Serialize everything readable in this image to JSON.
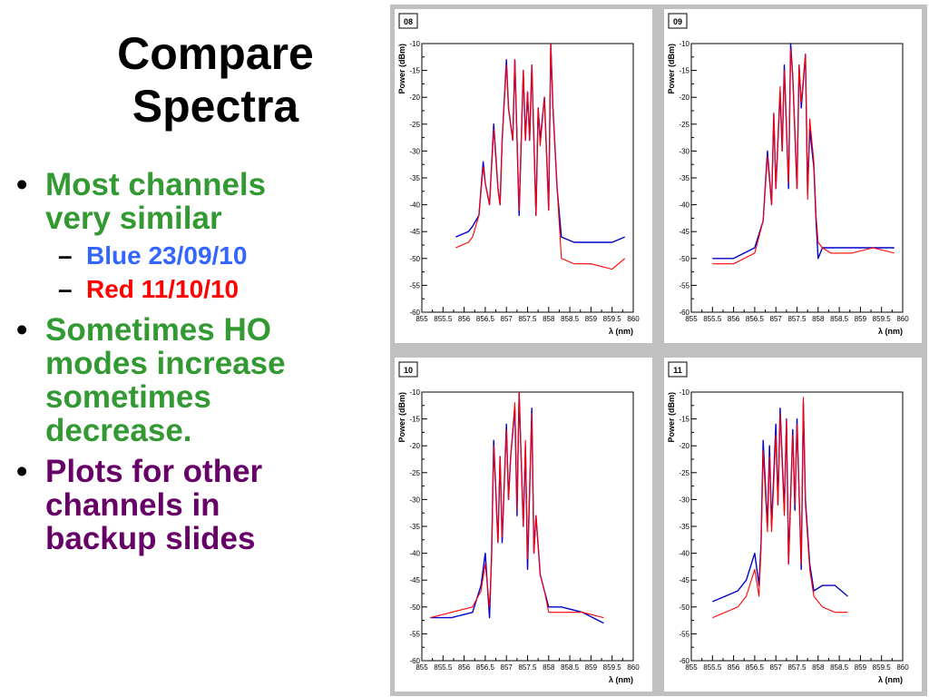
{
  "title": [
    "Compare",
    "Spectra"
  ],
  "bullets": [
    {
      "text": [
        "Most channels",
        "very similar"
      ],
      "color": "#339933",
      "sub": [
        {
          "text": "Blue 23/09/10",
          "color": "#3366FF"
        },
        {
          "text": "Red 11/10/10",
          "color": "#FF0000"
        }
      ]
    },
    {
      "text": [
        "Sometimes HO",
        "modes increase",
        "sometimes",
        "decrease."
      ],
      "color": "#339933"
    },
    {
      "text": [
        "Plots for other",
        "channels in",
        "backup slides"
      ],
      "color": "#660066"
    }
  ],
  "colors": {
    "series_blue": "#0000CC",
    "series_red": "#FF0000",
    "page_bg": "#C0C0C0",
    "plot_bg": "#FFFFFF"
  },
  "chart_data": [
    {
      "type": "line",
      "label": "08",
      "xlabel": "λ (nm)",
      "ylabel": "Power (dBm)",
      "xlim": [
        855,
        860
      ],
      "ylim": [
        -60,
        -10
      ],
      "xticks": [
        "855",
        "855.5",
        "856",
        "856.5",
        "857",
        "857.5",
        "858",
        "858.5",
        "859",
        "859.5",
        "860"
      ],
      "yticks": [
        "-10",
        "-15",
        "-20",
        "-25",
        "-30",
        "-35",
        "-40",
        "-45",
        "-50",
        "-55",
        "-60"
      ],
      "series": [
        {
          "color": "#0000CC",
          "x": [
            855.8,
            856.1,
            856.2,
            856.35,
            856.45,
            856.5,
            856.6,
            856.7,
            856.8,
            856.85,
            856.9,
            857.0,
            857.05,
            857.15,
            857.2,
            857.3,
            857.4,
            857.45,
            857.5,
            857.55,
            857.6,
            857.7,
            857.75,
            857.8,
            857.9,
            858.0,
            858.05,
            858.1,
            858.2,
            858.3,
            858.6,
            859.0,
            859.5,
            859.8
          ],
          "y": [
            -46,
            -45,
            -44,
            -42,
            -32,
            -36,
            -40,
            -25,
            -37,
            -40,
            -28,
            -13,
            -22,
            -28,
            -13,
            -42,
            -15,
            -28,
            -19,
            -28,
            -14,
            -42,
            -22,
            -28,
            -20,
            -41,
            -10,
            -22,
            -37,
            -46,
            -47,
            -47,
            -47,
            -46
          ]
        },
        {
          "color": "#FF0000",
          "x": [
            855.8,
            856.1,
            856.2,
            856.35,
            856.45,
            856.5,
            856.6,
            856.7,
            856.8,
            856.85,
            856.9,
            857.0,
            857.05,
            857.15,
            857.2,
            857.3,
            857.4,
            857.45,
            857.5,
            857.55,
            857.6,
            857.7,
            857.75,
            857.8,
            857.9,
            858.0,
            858.05,
            858.1,
            858.2,
            858.3,
            858.6,
            859.0,
            859.5,
            859.8
          ],
          "y": [
            -48,
            -47,
            -46,
            -42,
            -33,
            -36,
            -40,
            -26,
            -37,
            -40,
            -28,
            -14,
            -22,
            -28,
            -13,
            -41,
            -15,
            -28,
            -19,
            -28,
            -14,
            -42,
            -22,
            -29,
            -20,
            -41,
            -10,
            -22,
            -37,
            -50,
            -51,
            -51,
            -52,
            -50
          ]
        }
      ]
    },
    {
      "type": "line",
      "label": "09",
      "xlabel": "λ (nm)",
      "ylabel": "Power (dBm)",
      "xlim": [
        855,
        860
      ],
      "ylim": [
        -60,
        -10
      ],
      "xticks": [
        "855",
        "855.5",
        "856",
        "856.5",
        "857",
        "857.5",
        "858",
        "858.5",
        "859",
        "859.5",
        "860"
      ],
      "yticks": [
        "-10",
        "-15",
        "-20",
        "-25",
        "-30",
        "-35",
        "-40",
        "-45",
        "-50",
        "-55",
        "-60"
      ],
      "series": [
        {
          "color": "#0000CC",
          "x": [
            855.5,
            856.0,
            856.5,
            856.7,
            856.8,
            856.9,
            856.95,
            857.0,
            857.1,
            857.15,
            857.2,
            857.3,
            857.35,
            857.4,
            857.5,
            857.55,
            857.6,
            857.7,
            857.75,
            857.8,
            857.9,
            857.95,
            858.0,
            858.1,
            858.3,
            858.8,
            859.3,
            859.8
          ],
          "y": [
            -50,
            -50,
            -48,
            -43,
            -30,
            -40,
            -23,
            -37,
            -19,
            -30,
            -14,
            -37,
            -10,
            -16,
            -37,
            -14,
            -22,
            -12,
            -38,
            -26,
            -33,
            -43,
            -50,
            -48,
            -48,
            -48,
            -48,
            -48
          ]
        },
        {
          "color": "#FF0000",
          "x": [
            855.5,
            856.0,
            856.5,
            856.7,
            856.8,
            856.9,
            856.95,
            857.0,
            857.1,
            857.15,
            857.2,
            857.3,
            857.35,
            857.4,
            857.5,
            857.55,
            857.6,
            857.7,
            857.75,
            857.8,
            857.9,
            857.95,
            858.0,
            858.1,
            858.3,
            858.8,
            859.3,
            859.8
          ],
          "y": [
            -51,
            -51,
            -49,
            -43,
            -31,
            -40,
            -23,
            -37,
            -18,
            -30,
            -15,
            -36,
            -11,
            -16,
            -37,
            -14,
            -21,
            -12,
            -39,
            -24,
            -32,
            -42,
            -47,
            -48,
            -49,
            -49,
            -48,
            -49
          ]
        }
      ]
    },
    {
      "type": "line",
      "label": "10",
      "xlabel": "λ (nm)",
      "ylabel": "Power (dBm)",
      "xlim": [
        855,
        860
      ],
      "ylim": [
        -60,
        -10
      ],
      "xticks": [
        "855",
        "855.5",
        "856",
        "856.5",
        "857",
        "857.5",
        "858",
        "858.5",
        "859",
        "859.5",
        "860"
      ],
      "yticks": [
        "-10",
        "-15",
        "-20",
        "-25",
        "-30",
        "-35",
        "-40",
        "-45",
        "-50",
        "-55",
        "-60"
      ],
      "series": [
        {
          "color": "#0000CC",
          "x": [
            855.2,
            855.7,
            856.2,
            856.4,
            856.5,
            856.6,
            856.65,
            856.7,
            856.8,
            856.85,
            856.9,
            857.0,
            857.05,
            857.1,
            857.2,
            857.25,
            857.3,
            857.4,
            857.45,
            857.5,
            857.6,
            857.65,
            857.7,
            857.8,
            857.9,
            858.0,
            858.3,
            858.8,
            859.3
          ],
          "y": [
            -52,
            -52,
            -51,
            -46,
            -40,
            -52,
            -40,
            -19,
            -38,
            -22,
            -38,
            -16,
            -30,
            -22,
            -13,
            -33,
            -10,
            -35,
            -20,
            -43,
            -13,
            -40,
            -33,
            -44,
            -47,
            -50,
            -50,
            -51,
            -53
          ]
        },
        {
          "color": "#FF0000",
          "x": [
            855.2,
            855.7,
            856.2,
            856.4,
            856.5,
            856.6,
            856.65,
            856.7,
            856.8,
            856.85,
            856.9,
            857.0,
            857.05,
            857.1,
            857.2,
            857.25,
            857.3,
            857.4,
            857.45,
            857.5,
            857.6,
            857.65,
            857.7,
            857.8,
            857.9,
            858.0,
            858.3,
            858.8,
            859.3
          ],
          "y": [
            -52,
            -51,
            -50,
            -47,
            -42,
            -50,
            -41,
            -20,
            -38,
            -22,
            -37,
            -17,
            -30,
            -22,
            -12,
            -32,
            -10,
            -35,
            -19,
            -41,
            -14,
            -40,
            -33,
            -44,
            -47,
            -51,
            -51,
            -51,
            -52
          ]
        }
      ]
    },
    {
      "type": "line",
      "label": "11",
      "xlabel": "λ (nm)",
      "ylabel": "Power (dBm)",
      "xlim": [
        855,
        860
      ],
      "ylim": [
        -60,
        -10
      ],
      "xticks": [
        "855",
        "855.5",
        "856",
        "856.5",
        "857",
        "857.5",
        "858",
        "858.5",
        "859",
        "859.5",
        "860"
      ],
      "yticks": [
        "-10",
        "-15",
        "-20",
        "-25",
        "-30",
        "-35",
        "-40",
        "-45",
        "-50",
        "-55",
        "-60"
      ],
      "series": [
        {
          "color": "#0000CC",
          "x": [
            855.5,
            855.8,
            856.1,
            856.3,
            856.5,
            856.6,
            856.65,
            856.7,
            856.8,
            856.85,
            856.9,
            857.0,
            857.05,
            857.1,
            857.2,
            857.25,
            857.3,
            857.4,
            857.45,
            857.5,
            857.6,
            857.65,
            857.7,
            857.8,
            857.9,
            858.1,
            858.4,
            858.7
          ],
          "y": [
            -49,
            -48,
            -47,
            -45,
            -40,
            -46,
            -38,
            -19,
            -35,
            -20,
            -35,
            -16,
            -31,
            -13,
            -32,
            -15,
            -42,
            -17,
            -32,
            -15,
            -43,
            -12,
            -30,
            -42,
            -47,
            -46,
            -46,
            -48
          ]
        },
        {
          "color": "#FF0000",
          "x": [
            855.5,
            855.8,
            856.1,
            856.3,
            856.5,
            856.6,
            856.65,
            856.7,
            856.8,
            856.85,
            856.9,
            857.0,
            857.05,
            857.1,
            857.2,
            857.25,
            857.3,
            857.4,
            857.45,
            857.5,
            857.6,
            857.65,
            857.7,
            857.8,
            857.9,
            858.1,
            858.4,
            858.7
          ],
          "y": [
            -52,
            -51,
            -50,
            -48,
            -43,
            -48,
            -39,
            -21,
            -36,
            -22,
            -36,
            -18,
            -31,
            -14,
            -33,
            -15,
            -42,
            -18,
            -31,
            -16,
            -42,
            -11,
            -31,
            -43,
            -48,
            -50,
            -51,
            -51
          ]
        }
      ]
    }
  ]
}
